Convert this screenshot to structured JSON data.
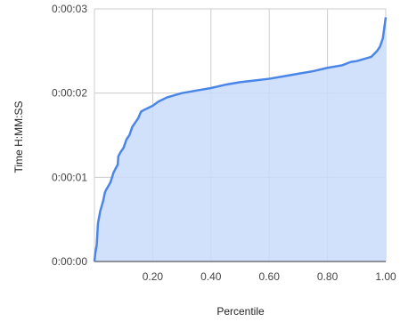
{
  "chart_data": {
    "type": "area",
    "title": "",
    "xlabel": "Percentile",
    "ylabel": "Time H:MM:SS",
    "xlim": [
      0,
      1
    ],
    "ylim": [
      0,
      3
    ],
    "x_ticks": [
      {
        "value": 0.2,
        "label": "0.20"
      },
      {
        "value": 0.4,
        "label": "0.40"
      },
      {
        "value": 0.6,
        "label": "0.60"
      },
      {
        "value": 0.8,
        "label": "0.80"
      },
      {
        "value": 1.0,
        "label": "1.00"
      }
    ],
    "y_ticks": [
      {
        "value": 0,
        "label": "0:00:00"
      },
      {
        "value": 1,
        "label": "0:00:01"
      },
      {
        "value": 2,
        "label": "0:00:02"
      },
      {
        "value": 3,
        "label": "0:00:03"
      }
    ],
    "grid": true,
    "legend": "none",
    "colors": {
      "line": "#4a86e8",
      "fill": "#c9dcfa",
      "grid": "#cccccc",
      "axis": "#333333"
    },
    "series": [
      {
        "x": [
          0,
          0.003,
          0.008,
          0.012,
          0.02,
          0.03,
          0.036,
          0.04,
          0.045,
          0.055,
          0.065,
          0.072,
          0.08,
          0.082,
          0.09,
          0.1,
          0.11,
          0.12,
          0.13,
          0.14,
          0.15,
          0.16,
          0.17,
          0.2,
          0.22,
          0.25,
          0.3,
          0.35,
          0.4,
          0.45,
          0.5,
          0.55,
          0.6,
          0.65,
          0.7,
          0.75,
          0.8,
          0.85,
          0.88,
          0.9,
          0.92,
          0.95,
          0.97,
          0.98,
          0.99,
          1.0
        ],
        "y": [
          0,
          0.1,
          0.2,
          0.45,
          0.6,
          0.72,
          0.82,
          0.85,
          0.88,
          0.94,
          1.05,
          1.1,
          1.15,
          1.25,
          1.3,
          1.35,
          1.45,
          1.5,
          1.6,
          1.65,
          1.7,
          1.78,
          1.8,
          1.85,
          1.9,
          1.95,
          2.0,
          2.03,
          2.06,
          2.1,
          2.13,
          2.15,
          2.17,
          2.2,
          2.23,
          2.26,
          2.3,
          2.33,
          2.37,
          2.38,
          2.4,
          2.43,
          2.5,
          2.55,
          2.65,
          2.9
        ]
      }
    ]
  }
}
